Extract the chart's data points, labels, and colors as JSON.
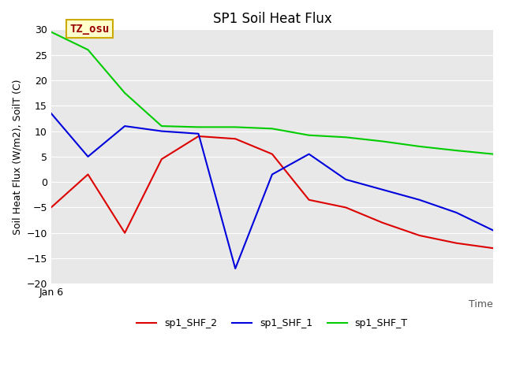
{
  "title": "SP1 Soil Heat Flux",
  "ylabel": "Soil Heat Flux (W/m2), SoilT (C)",
  "xlabel": "Time",
  "ylim": [
    -20,
    30
  ],
  "yticks": [
    -20,
    -15,
    -10,
    -5,
    0,
    5,
    10,
    15,
    20,
    25,
    30
  ],
  "x_label_text": "Jan 6",
  "annotation_text": "TZ_osu",
  "bg_color": "#e8e8e8",
  "grid_color": "#ffffff",
  "series": {
    "sp1_SHF_2": {
      "color": "#dd0000",
      "x": [
        0,
        1,
        2,
        3,
        4,
        5,
        6,
        7,
        8,
        9,
        10,
        11,
        12
      ],
      "y": [
        -5,
        1.5,
        -10,
        4.5,
        9,
        8.5,
        5.5,
        -3.5,
        -5,
        -8,
        -10.5,
        -12,
        -13
      ]
    },
    "sp1_SHF_1": {
      "color": "#0000dd",
      "x": [
        0,
        1,
        2,
        3,
        4,
        5,
        6,
        7,
        8,
        9,
        10,
        11,
        12
      ],
      "y": [
        13.5,
        5,
        11,
        10,
        9.5,
        -17,
        1.5,
        5.5,
        0.5,
        -1.5,
        -3.5,
        -6,
        -9.5
      ]
    },
    "sp1_SHF_T": {
      "color": "#00cc00",
      "x": [
        0,
        1,
        2,
        3,
        4,
        5,
        6,
        7,
        8,
        9,
        10,
        11,
        12
      ],
      "y": [
        29.5,
        26,
        17.5,
        11,
        10.8,
        10.8,
        10.5,
        9.2,
        8.8,
        8,
        7,
        6.2,
        5.5
      ]
    }
  },
  "legend_labels": [
    "sp1_SHF_2",
    "sp1_SHF_1",
    "sp1_SHF_T"
  ],
  "title_fontsize": 12,
  "tick_fontsize": 9,
  "ylabel_fontsize": 9,
  "xlabel_fontsize": 9,
  "annotation_fontsize": 10,
  "legend_fontsize": 9
}
